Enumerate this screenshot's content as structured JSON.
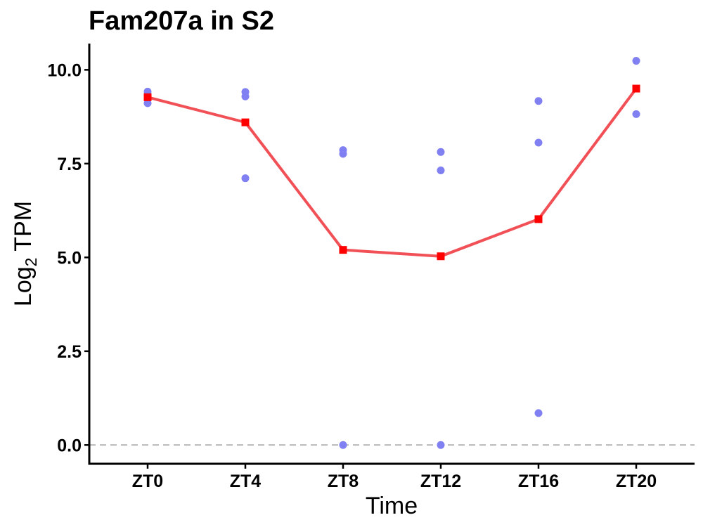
{
  "chart_data": {
    "type": "line",
    "title": "Fam207a in S2",
    "xlabel": "Time",
    "ylabel": {
      "main": "Log",
      "subscript": "2",
      "suffix": " TPM"
    },
    "categories": [
      "ZT0",
      "ZT4",
      "ZT8",
      "ZT12",
      "ZT16",
      "ZT20"
    ],
    "ylim": [
      -0.5,
      10.7
    ],
    "yticks": [
      0.0,
      2.5,
      5.0,
      7.5,
      10.0
    ],
    "ytick_labels": [
      "0.0",
      "2.5",
      "5.0",
      "7.5",
      "10.0"
    ],
    "grid": false,
    "reference_line": {
      "y": 0,
      "style": "dashed",
      "color": "#b3b3b3"
    },
    "series": [
      {
        "kind": "mean-line",
        "color": "#f05056",
        "marker_color": "#ff0000",
        "values": [
          9.27,
          8.6,
          5.2,
          5.03,
          6.02,
          9.5
        ]
      },
      {
        "kind": "replicate-points",
        "color": "#8080f2",
        "points": [
          {
            "x": "ZT0",
            "y": 9.42
          },
          {
            "x": "ZT0",
            "y": 9.27
          },
          {
            "x": "ZT0",
            "y": 9.11
          },
          {
            "x": "ZT4",
            "y": 9.41
          },
          {
            "x": "ZT4",
            "y": 9.29
          },
          {
            "x": "ZT4",
            "y": 7.11
          },
          {
            "x": "ZT8",
            "y": 7.86
          },
          {
            "x": "ZT8",
            "y": 7.76
          },
          {
            "x": "ZT8",
            "y": 0.0
          },
          {
            "x": "ZT12",
            "y": 7.81
          },
          {
            "x": "ZT12",
            "y": 7.32
          },
          {
            "x": "ZT12",
            "y": 0.0
          },
          {
            "x": "ZT16",
            "y": 9.17
          },
          {
            "x": "ZT16",
            "y": 8.06
          },
          {
            "x": "ZT16",
            "y": 0.85
          },
          {
            "x": "ZT20",
            "y": 10.24
          },
          {
            "x": "ZT20",
            "y": 8.82
          }
        ]
      }
    ]
  }
}
